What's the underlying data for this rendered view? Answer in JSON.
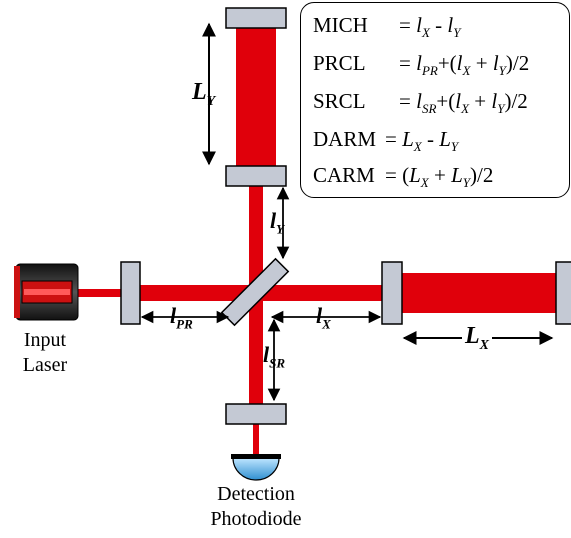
{
  "labels": {
    "input_laser": [
      "Input",
      "Laser"
    ],
    "detection_photodiode": [
      "Detection",
      "Photodiode"
    ],
    "length_LY": "L",
    "length_LY_sub": "Y",
    "length_LX": "L",
    "length_LX_sub": "X",
    "length_lY": "l",
    "length_lY_sub": "Y",
    "length_lPR": "l",
    "length_lPR_sub": "PR",
    "length_lX": "l",
    "length_lX_sub": "X",
    "length_lSR": "l",
    "length_lSR_sub": "SR"
  },
  "equations": [
    {
      "name": "MICH",
      "rhs": "= l_X - l_Y"
    },
    {
      "name": "PRCL",
      "rhs": "= l_PR+(l_X + l_Y)/2"
    },
    {
      "name": "SRCL",
      "rhs": "= l_SR+(l_X + l_Y)/2"
    },
    {
      "name": "DARM",
      "rhs": "= L_X - L_Y"
    },
    {
      "name": "CARM",
      "rhs": "= (L_X + L_Y)/2"
    }
  ],
  "colors": {
    "beam": "#e0000b",
    "mirror_fill": "#c4c9d4",
    "laser_body": "#2a2a2a",
    "laser_core": "#cc1111",
    "photodiode": "#5fb3e6"
  }
}
